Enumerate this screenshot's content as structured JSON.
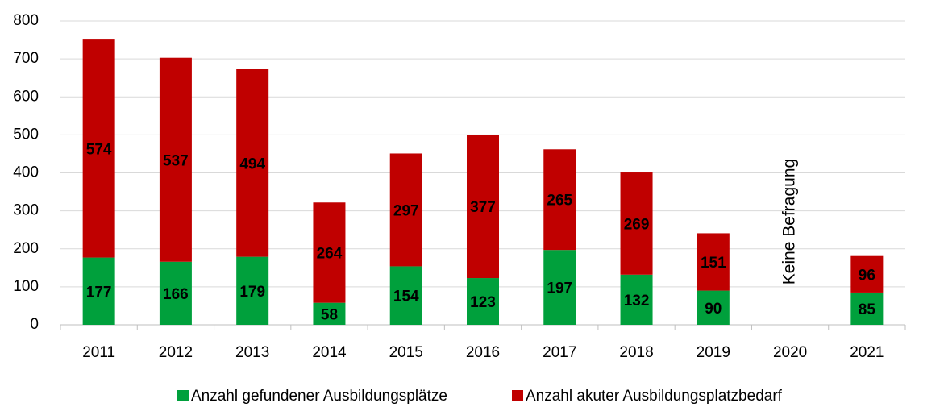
{
  "chart_data": {
    "type": "stacked_bar",
    "categories": [
      "2011",
      "2012",
      "2013",
      "2014",
      "2015",
      "2016",
      "2017",
      "2018",
      "2019",
      "2020",
      "2021"
    ],
    "series": [
      {
        "name": "Anzahl gefundener Ausbildungsplätze",
        "color": "#00a03c",
        "values": [
          177,
          166,
          179,
          58,
          154,
          123,
          197,
          132,
          90,
          null,
          85
        ]
      },
      {
        "name": "Anzahl akuter Ausbildungsplatzbedarf",
        "color": "#c00000",
        "values": [
          574,
          537,
          494,
          264,
          297,
          377,
          265,
          269,
          151,
          null,
          96
        ]
      }
    ],
    "ylim": [
      0,
      800
    ],
    "yticks": [
      0,
      100,
      200,
      300,
      400,
      500,
      600,
      700,
      800
    ],
    "grid": true,
    "annotations": [
      {
        "text": "Keine Befragung",
        "category": "2020",
        "color": "#00a03c"
      }
    ],
    "legend": "bottom"
  }
}
